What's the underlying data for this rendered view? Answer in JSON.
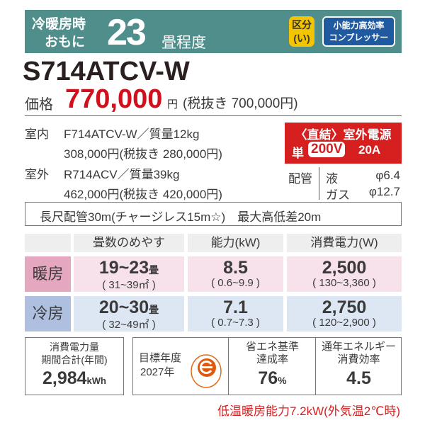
{
  "banner": {
    "line1": "冷暖房時",
    "line2": "おもに",
    "size": "23",
    "unit": "畳程度",
    "kubun_l1": "区分",
    "kubun_l2": "(い)",
    "badge_l1": "小能力高効率",
    "badge_l2": "コンプレッサー",
    "color": "#508e8c"
  },
  "model": "S714ATCV-W",
  "price": {
    "label": "価格",
    "value": "770,000",
    "yen": "円",
    "ex_tax": "(税抜き 700,000円)"
  },
  "indoor": {
    "label": "室内",
    "model": "F714ATCV-W／質量12kg",
    "price": "308,000円(税抜き 280,000円)"
  },
  "outdoor": {
    "label": "室外",
    "model": "R714ACV／質量39kg",
    "price": "462,000円(税抜き 420,000円)"
  },
  "power": {
    "title": "〈直結〉室外電源",
    "phase": "単",
    "voltage": "200V",
    "ampere": "20A",
    "color": "#d62020"
  },
  "piping": {
    "label": "配管",
    "liquid_label": "液",
    "liquid": "φ6.4",
    "gas_label": "ガス",
    "gas": "φ12.7"
  },
  "long_piping": "長尺配管30m(チャージレス15m☆)　最大高低差20m",
  "table": {
    "headers": [
      "畳数のめやす",
      "能力(kW)",
      "消費電力(W)"
    ],
    "rows": [
      {
        "label": "暖房",
        "area": "19~23",
        "area_unit": "畳",
        "area_m2": "( 31~39㎡ )",
        "capacity": "8.5",
        "capacity_range": "( 0.6~9.9 )",
        "power": "2,500",
        "power_range": "( 130~3,360 )"
      },
      {
        "label": "冷房",
        "area": "20~30",
        "area_unit": "畳",
        "area_m2": "( 32~49㎡ )",
        "capacity": "7.1",
        "capacity_range": "( 0.7~7.3 )",
        "power": "2,750",
        "power_range": "( 120~2,900 )"
      }
    ]
  },
  "annual": {
    "l1": "消費電力量",
    "l2": "期間合計(年間)",
    "value": "2,984",
    "unit": "kWh"
  },
  "target": {
    "l1": "目標年度",
    "l2": "2027年",
    "icon": "e-mark-icon"
  },
  "achievement": {
    "l1": "省エネ基準",
    "l2": "達成率",
    "value": "76",
    "unit": "%"
  },
  "apf": {
    "l1": "通年エネルギー",
    "l2": "消費効率",
    "value": "4.5"
  },
  "footer": "低温暖房能力7.2kW(外気温2℃時)"
}
